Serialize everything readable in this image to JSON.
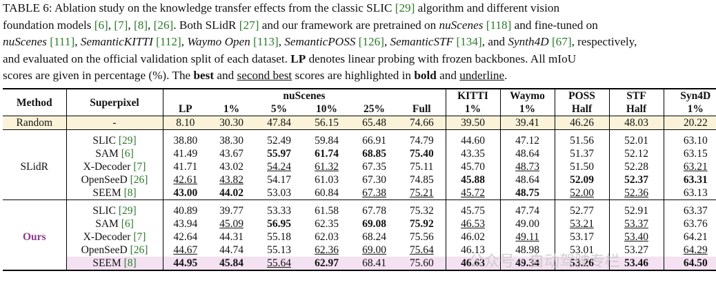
{
  "caption": {
    "l1a": "TABLE 6: Ablation study on the knowledge transfer effects from the classic SLIC ",
    "l1b": "[29]",
    "l1c": " algorithm and different vision",
    "l2a": "foundation models ",
    "l2b": "[6]",
    "l2c": ", ",
    "l2d": "[7]",
    "l2e": ", ",
    "l2f": "[8]",
    "l2g": ", ",
    "l2h": "[26]",
    "l2i": ". Both SLidR ",
    "l2j": "[27]",
    "l2k": " and our framework are pretrained on ",
    "l2l": "nuScenes",
    "l2m": " ",
    "l2n": "[118]",
    "l2o": " and fine-tuned on",
    "l3a": "nuScenes",
    "l3b": " ",
    "l3c": "[111]",
    "l3d": ", ",
    "l3e": "SemanticKITTI",
    "l3f": " ",
    "l3g": "[112]",
    "l3h": ", ",
    "l3i": "Waymo Open",
    "l3j": " ",
    "l3k": "[113]",
    "l3l": ", ",
    "l3m": "SemanticPOSS",
    "l3n": " ",
    "l3o": "[126]",
    "l3p": ", ",
    "l3q": "SemanticSTF",
    "l3r": " ",
    "l3s": "[134]",
    "l3t": ", and ",
    "l3u": "Synth4D",
    "l3v": " ",
    "l3w": "[67]",
    "l3x": ", respectively,",
    "l4a": "and evaluated on the official validation split of each dataset. ",
    "l4b": "LP",
    "l4c": " denotes linear probing with frozen backbones. All mIoU",
    "l5a": "scores are given in percentage (%). The ",
    "l5b": "best",
    "l5c": " and ",
    "l5d": "second best",
    "l5e": " scores are highlighted in ",
    "l5f": "bold",
    "l5g": " and ",
    "l5h": "underline",
    "l5i": "."
  },
  "header": {
    "method": "Method",
    "superpixel": "Superpixel",
    "nuscenes": "nuScenes",
    "kitti": "KITTI",
    "waymo": "Waymo",
    "poss": "POSS",
    "stf": "STF",
    "syn4d": "Syn4D",
    "lp": "LP",
    "p1": "1%",
    "p5": "5%",
    "p10": "10%",
    "p25": "25%",
    "full": "Full",
    "kitti_sub": "1%",
    "waymo_sub": "1%",
    "poss_sub": "Half",
    "stf_sub": "Half",
    "syn4d_sub": "1%"
  },
  "random": {
    "method": "Random",
    "superpixel": "-",
    "v": [
      "8.10",
      "30.30",
      "47.84",
      "56.15",
      "65.48",
      "74.66",
      "39.50",
      "39.41",
      "46.26",
      "48.03",
      "20.22"
    ]
  },
  "groups": [
    {
      "method": "SLidR",
      "rows": [
        {
          "sp": "SLIC",
          "cite": "[29]",
          "v": [
            "38.80",
            "38.30",
            "52.49",
            "59.84",
            "66.91",
            "74.79",
            "44.60",
            "47.12",
            "51.56",
            "52.01",
            "63.10"
          ]
        },
        {
          "sp": "SAM",
          "cite": "[6]",
          "v": [
            "41.49",
            "43.67",
            "55.97",
            "61.74",
            "68.85",
            "75.40",
            "43.35",
            "48.64",
            "51.37",
            "52.12",
            "63.15"
          ]
        },
        {
          "sp": "X-Decoder",
          "cite": "[7]",
          "v": [
            "41.71",
            "43.02",
            "54.24",
            "61.32",
            "67.35",
            "75.11",
            "45.70",
            "48.73",
            "51.50",
            "52.28",
            "63.21"
          ]
        },
        {
          "sp": "OpenSeeD",
          "cite": "[26]",
          "v": [
            "42.61",
            "43.82",
            "54.17",
            "61.03",
            "67.30",
            "74.85",
            "45.88",
            "48.64",
            "52.09",
            "52.37",
            "63.31"
          ]
        },
        {
          "sp": "SEEM",
          "cite": "[8]",
          "v": [
            "43.00",
            "44.02",
            "53.03",
            "60.84",
            "67.38",
            "75.21",
            "45.72",
            "48.75",
            "52.00",
            "52.36",
            "63.13"
          ]
        }
      ]
    },
    {
      "method": "Ours",
      "rows": [
        {
          "sp": "SLIC",
          "cite": "[29]",
          "v": [
            "40.89",
            "39.77",
            "53.33",
            "61.58",
            "67.78",
            "75.32",
            "45.75",
            "47.74",
            "52.77",
            "52.91",
            "63.37"
          ]
        },
        {
          "sp": "SAM",
          "cite": "[6]",
          "v": [
            "43.94",
            "45.09",
            "56.95",
            "62.35",
            "69.08",
            "75.92",
            "46.53",
            "49.00",
            "53.21",
            "53.37",
            "63.76"
          ]
        },
        {
          "sp": "X-Decoder",
          "cite": "[7]",
          "v": [
            "42.64",
            "44.31",
            "55.18",
            "62.03",
            "68.24",
            "75.56",
            "46.02",
            "49.11",
            "53.17",
            "53.40",
            "64.21"
          ]
        },
        {
          "sp": "OpenSeeD",
          "cite": "[26]",
          "v": [
            "44.67",
            "44.74",
            "55.13",
            "62.36",
            "69.00",
            "75.64",
            "46.13",
            "48.98",
            "53.01",
            "53.27",
            "64.29"
          ]
        },
        {
          "sp": "SEEM",
          "cite": "[8]",
          "v": [
            "44.95",
            "45.84",
            "55.64",
            "62.97",
            "68.41",
            "75.60",
            "46.63",
            "49.34",
            "53.26",
            "53.46",
            "64.50"
          ]
        }
      ]
    }
  ],
  "watermark": "公众号 · 自动驾驶专栏",
  "colors": {
    "citation": "#2a7a2a",
    "ours_label": "#8b3a8f",
    "random_bg": "#fbf3d9",
    "seem_ours_bg": "#f4e1f2"
  }
}
